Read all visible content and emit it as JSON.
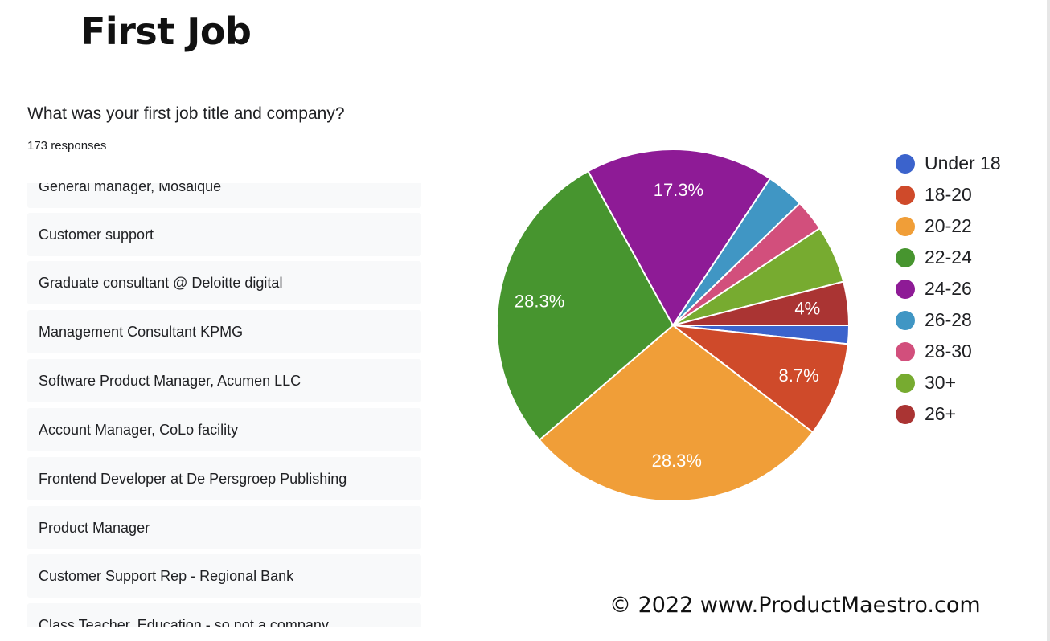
{
  "page": {
    "title": "First Job",
    "copyright": "© 2022 www.ProductMaestro.com"
  },
  "form": {
    "question": "What was your first job title and company?",
    "responses_count": "173 responses",
    "responses": [
      "General manager, Mosaique",
      "Customer support",
      "Graduate consultant @ Deloitte digital",
      "Management Consultant KPMG",
      "Software Product Manager, Acumen LLC",
      "Account Manager, CoLo facility",
      "Frontend Developer at De Persgroep Publishing",
      "Product Manager",
      "Customer Support Rep - Regional Bank",
      "Class Teacher, Education - so not a company"
    ]
  },
  "chart_data": {
    "type": "pie",
    "title": "",
    "legend_position": "right",
    "start": "3 o'clock, clockwise",
    "slices": [
      {
        "name": "Under 18",
        "value": 1.7,
        "color": "#3b63cc",
        "label": ""
      },
      {
        "name": "18-20",
        "value": 8.7,
        "color": "#cf4a2a",
        "label": "8.7%"
      },
      {
        "name": "20-22",
        "value": 28.3,
        "color": "#f09e38",
        "label": "28.3%"
      },
      {
        "name": "22-24",
        "value": 28.3,
        "color": "#47952f",
        "label": "28.3%"
      },
      {
        "name": "24-26",
        "value": 17.3,
        "color": "#8e1b96",
        "label": "17.3%"
      },
      {
        "name": "26-28",
        "value": 3.5,
        "color": "#4096c4",
        "label": ""
      },
      {
        "name": "28-30",
        "value": 2.9,
        "color": "#d24f7c",
        "label": ""
      },
      {
        "name": "30+",
        "value": 5.3,
        "color": "#77ab30",
        "label": ""
      },
      {
        "name": "26+",
        "value": 4.0,
        "color": "#aa3433",
        "label": "4%"
      }
    ]
  }
}
